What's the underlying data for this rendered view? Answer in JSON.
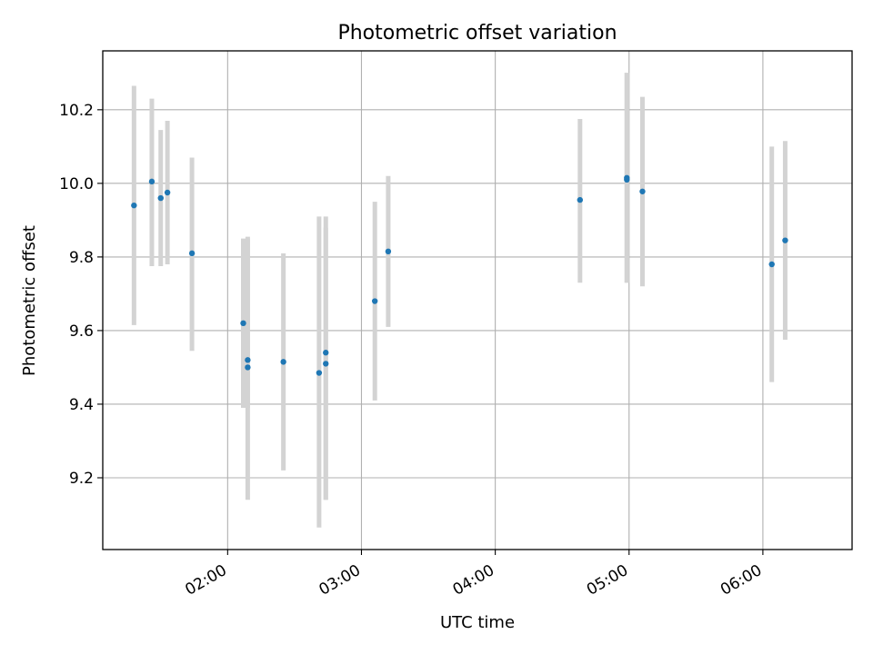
{
  "chart_data": {
    "type": "scatter",
    "title": "Photometric offset variation",
    "xlabel": "UTC time",
    "ylabel": "Photometric offset",
    "xlim": [
      "01:04",
      "06:40"
    ],
    "ylim": [
      9.005,
      10.36
    ],
    "xticks": [
      "02:00",
      "03:00",
      "04:00",
      "05:00",
      "06:00"
    ],
    "yticks": [
      9.2,
      9.4,
      9.6,
      9.8,
      10.0,
      10.2
    ],
    "ytick_labels": [
      "9.2",
      "9.4",
      "9.6",
      "9.8",
      "10.0",
      "10.2"
    ],
    "grid": true,
    "colors": {
      "point": "#1f77b4",
      "errorbar": "#d3d3d3",
      "grid": "#b0b0b0"
    },
    "points": [
      {
        "x": "01:18",
        "y": 9.94,
        "low": 9.615,
        "high": 10.265
      },
      {
        "x": "01:26",
        "y": 10.005,
        "low": 9.775,
        "high": 10.23
      },
      {
        "x": "01:30",
        "y": 9.96,
        "low": 9.775,
        "high": 10.145
      },
      {
        "x": "01:33",
        "y": 9.975,
        "low": 9.78,
        "high": 10.17
      },
      {
        "x": "01:44",
        "y": 9.81,
        "low": 9.545,
        "high": 10.07
      },
      {
        "x": "02:07",
        "y": 9.62,
        "low": 9.39,
        "high": 9.85
      },
      {
        "x": "02:09",
        "y": 9.52,
        "low": 9.39,
        "high": 9.85
      },
      {
        "x": "02:09",
        "y": 9.5,
        "low": 9.14,
        "high": 9.855
      },
      {
        "x": "02:25",
        "y": 9.515,
        "low": 9.22,
        "high": 9.81
      },
      {
        "x": "02:41",
        "y": 9.485,
        "low": 9.065,
        "high": 9.91
      },
      {
        "x": "02:44",
        "y": 9.54,
        "low": 9.14,
        "high": 9.91
      },
      {
        "x": "02:44",
        "y": 9.51,
        "low": 9.14,
        "high": 9.88
      },
      {
        "x": "03:06",
        "y": 9.68,
        "low": 9.41,
        "high": 9.95
      },
      {
        "x": "03:12",
        "y": 9.815,
        "low": 9.61,
        "high": 10.02
      },
      {
        "x": "04:38",
        "y": 9.955,
        "low": 9.73,
        "high": 10.175
      },
      {
        "x": "04:59",
        "y": 10.015,
        "low": 9.73,
        "high": 10.3
      },
      {
        "x": "04:59",
        "y": 10.01,
        "low": 9.73,
        "high": 10.3
      },
      {
        "x": "05:06",
        "y": 9.978,
        "low": 9.72,
        "high": 10.235
      },
      {
        "x": "06:04",
        "y": 9.78,
        "low": 9.46,
        "high": 10.1
      },
      {
        "x": "06:10",
        "y": 9.845,
        "low": 9.575,
        "high": 10.115
      }
    ]
  }
}
